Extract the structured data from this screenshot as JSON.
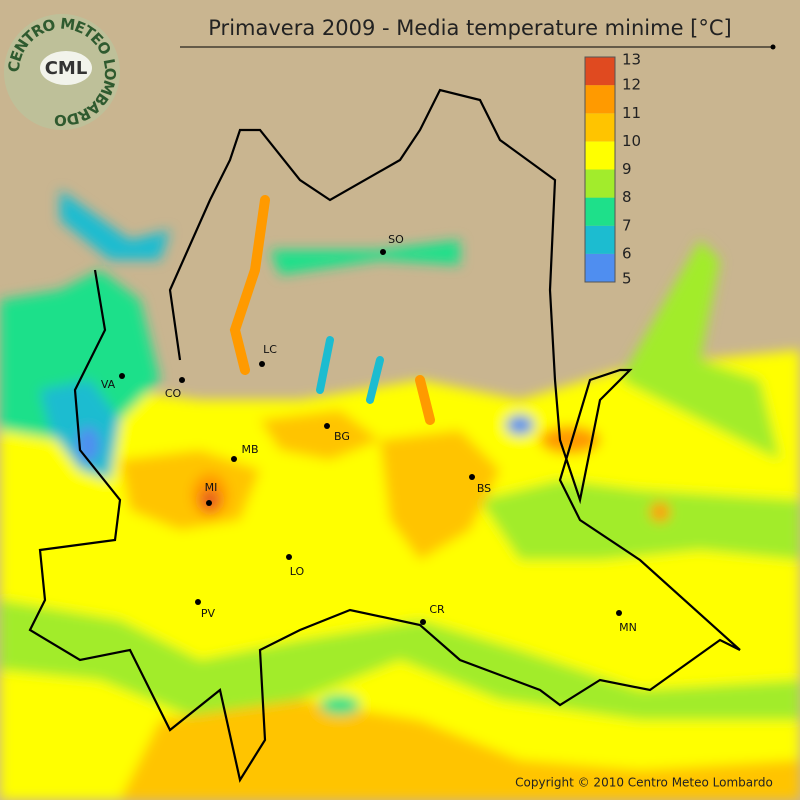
{
  "title": "Primavera 2009 - Media temperature minime [°C]",
  "logo": {
    "ring": "CENTRO METEO LOMBARDO",
    "short": "CML"
  },
  "legend": {
    "ticks": [
      5,
      6,
      7,
      8,
      9,
      10,
      11,
      12,
      13
    ],
    "colors": [
      "#4f8ef0",
      "#1cbcd0",
      "#1ee08a",
      "#a2ec2c",
      "#ffff00",
      "#ffc400",
      "#ff9a00",
      "#e04a20"
    ]
  },
  "cities": [
    "VA",
    "CO",
    "LC",
    "SO",
    "MB",
    "BG",
    "MI",
    "BS",
    "LO",
    "PV",
    "CR",
    "MN"
  ],
  "copyright": "Copyright © 2010 Centro Meteo Lombardo"
}
